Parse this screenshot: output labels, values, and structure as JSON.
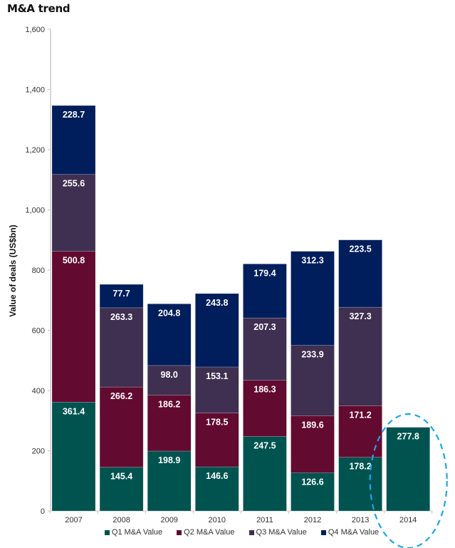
{
  "chart_data": {
    "type": "bar",
    "stacked": true,
    "title": "M&A trend",
    "xlabel": "",
    "ylabel": "Value of deals (US$bn)",
    "ylim": [
      0,
      1600
    ],
    "yticks": [
      0,
      200,
      400,
      600,
      800,
      1000,
      1200,
      1400,
      1600
    ],
    "ytick_labels": [
      "0",
      "200",
      "400",
      "600",
      "800",
      "1,000",
      "1,200",
      "1,400",
      "1,600"
    ],
    "categories": [
      "2007",
      "2008",
      "2009",
      "2010",
      "2011",
      "2012",
      "2013",
      "2014"
    ],
    "series": [
      {
        "name": "Q1 M&A Value",
        "color": "#00534F",
        "values": [
          361.4,
          145.4,
          198.9,
          146.6,
          247.5,
          126.6,
          178.2,
          277.8
        ]
      },
      {
        "name": "Q2 M&A Value",
        "color": "#620A30",
        "values": [
          500.8,
          266.2,
          186.2,
          178.5,
          186.3,
          189.6,
          171.2,
          null
        ]
      },
      {
        "name": "Q3 M&A Value",
        "color": "#3F2F50",
        "values": [
          255.6,
          263.3,
          98.0,
          153.1,
          207.3,
          233.9,
          327.3,
          null
        ]
      },
      {
        "name": "Q4 M&A Value",
        "color": "#001E5C",
        "values": [
          228.7,
          77.7,
          204.8,
          243.8,
          179.4,
          312.3,
          223.5,
          null
        ]
      }
    ],
    "data_label_format": "0.0",
    "legend": "bottom",
    "grid": false,
    "annotations": [
      {
        "type": "dashed-ellipse",
        "target_category": "2014",
        "color": "#1AA7E8"
      }
    ]
  }
}
